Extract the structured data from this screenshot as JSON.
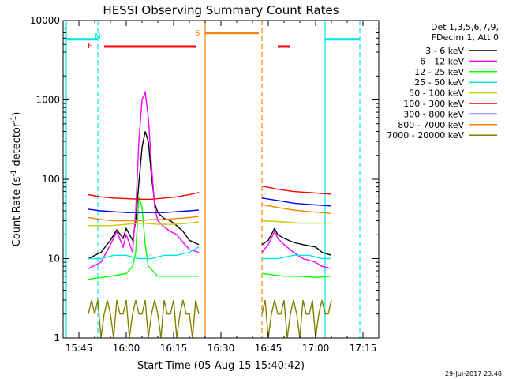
{
  "chart_data": {
    "type": "line",
    "title": "HESSI Observing Summary Count Rates",
    "xlabel": "Start Time (05-Aug-15 15:40:42)",
    "ylabel": "Count Rate (s",
    "ylabel_sup1": "-1",
    "ylabel_mid": " detector",
    "ylabel_sup2": "-1",
    "ylabel_end": ")",
    "footer": "29-Jul-2017 23:48",
    "y_scale": "log",
    "xlim": [
      "15:40",
      "17:20"
    ],
    "ylim": [
      1,
      10000
    ],
    "x_ticks": [
      "15:45",
      "16:00",
      "16:15",
      "16:30",
      "16:45",
      "17:00",
      "17:15"
    ],
    "y_ticks": [
      "1",
      "10",
      "100",
      "1000",
      "10000"
    ],
    "legend": {
      "placement": "right",
      "header": [
        "Det 1,3,5,6,7,9,",
        "FDecim 1, Att 0"
      ]
    },
    "flags": [
      {
        "letter": "N",
        "color": "#00e5e5",
        "time": "15:50"
      },
      {
        "letter": "F",
        "color": "#ff0000",
        "time": "15:50"
      },
      {
        "letter": "S",
        "color": "#ff8000",
        "time": "16:25"
      }
    ],
    "flag_bars": [
      {
        "color": "#00e5e5",
        "level": 5800,
        "start": "15:41",
        "end": "15:51"
      },
      {
        "color": "#ff0000",
        "level": 4700,
        "start": "15:53",
        "end": "16:22"
      },
      {
        "color": "#ff8000",
        "level": 7000,
        "start": "16:25",
        "end": "16:42"
      },
      {
        "color": "#ff0000",
        "level": 4700,
        "start": "16:48",
        "end": "16:52"
      },
      {
        "color": "#00e5e5",
        "level": 5800,
        "start": "17:03",
        "end": "17:14"
      }
    ],
    "vlines": [
      {
        "time": "15:41",
        "color": "#00e5e5",
        "style": "solid"
      },
      {
        "time": "15:51",
        "color": "#00e5e5",
        "style": "dashed"
      },
      {
        "time": "16:25",
        "color": "#ff8000",
        "style": "solid"
      },
      {
        "time": "16:43",
        "color": "#ff8000",
        "style": "dashed"
      },
      {
        "time": "17:03",
        "color": "#00e5e5",
        "style": "solid"
      },
      {
        "time": "17:14",
        "color": "#00e5e5",
        "style": "dashed"
      }
    ],
    "series": [
      {
        "name": "3 - 6 keV",
        "color": "#000000",
        "segments": [
          {
            "x": [
              "15:48",
              "15:52",
              "15:55",
              "15:57",
              "15:59",
              "16:00",
              "16:02",
              "16:03",
              "16:04",
              "16:05",
              "16:06",
              "16:07",
              "16:08",
              "16:09",
              "16:10",
              "16:12",
              "16:14",
              "16:16",
              "16:18",
              "16:20",
              "16:23"
            ],
            "y": [
              10,
              12,
              17,
              23,
              18,
              24,
              17,
              30,
              90,
              250,
              400,
              300,
              110,
              50,
              38,
              32,
              30,
              26,
              22,
              17,
              15
            ]
          },
          {
            "x": [
              "16:43",
              "16:45",
              "16:47",
              "16:48",
              "16:50",
              "16:53",
              "16:56",
              "17:00",
              "17:02",
              "17:05"
            ],
            "y": [
              15,
              17,
              24,
              20,
              18,
              16,
              15,
              14,
              12,
              11
            ]
          }
        ]
      },
      {
        "name": "6 - 12 keV",
        "color": "#ff00ff",
        "segments": [
          {
            "x": [
              "15:48",
              "15:52",
              "15:55",
              "15:57",
              "15:59",
              "16:00",
              "16:02",
              "16:03",
              "16:04",
              "16:05",
              "16:06",
              "16:07",
              "16:08",
              "16:09",
              "16:10",
              "16:12",
              "16:14",
              "16:16",
              "16:18",
              "16:20",
              "16:23"
            ],
            "y": [
              7.5,
              9,
              15,
              22,
              14,
              20,
              12,
              40,
              300,
              1000,
              1250,
              600,
              150,
              45,
              30,
              25,
              22,
              20,
              16,
              13,
              12
            ]
          },
          {
            "x": [
              "16:43",
              "16:45",
              "16:47",
              "16:48",
              "16:50",
              "16:53",
              "16:56",
              "17:00",
              "17:02",
              "17:05"
            ],
            "y": [
              12,
              15,
              22,
              18,
              15,
              12,
              10,
              9,
              8,
              7.5
            ]
          }
        ]
      },
      {
        "name": "12 - 25 keV",
        "color": "#00ff00",
        "segments": [
          {
            "x": [
              "15:48",
              "15:55",
              "16:00",
              "16:02",
              "16:03",
              "16:04",
              "16:05",
              "16:06",
              "16:07",
              "16:10",
              "16:15",
              "16:23"
            ],
            "y": [
              5.5,
              6,
              6.5,
              8,
              12,
              60,
              45,
              15,
              8,
              6,
              6,
              6
            ]
          },
          {
            "x": [
              "16:43",
              "16:50",
              "16:55",
              "17:00",
              "17:05"
            ],
            "y": [
              6.5,
              6,
              6,
              5.8,
              6
            ]
          }
        ]
      },
      {
        "name": "25 - 50 keV",
        "color": "#00e5e5",
        "segments": [
          {
            "x": [
              "15:48",
              "15:52",
              "15:56",
              "16:00",
              "16:04",
              "16:08",
              "16:12",
              "16:16",
              "16:20",
              "16:23"
            ],
            "y": [
              10,
              10,
              11,
              11,
              10,
              10,
              11,
              11,
              12,
              14
            ]
          },
          {
            "x": [
              "16:43",
              "16:48",
              "16:53",
              "16:58",
              "17:02",
              "17:05"
            ],
            "y": [
              10,
              10,
              11,
              11,
              10,
              10
            ]
          }
        ]
      },
      {
        "name": "50 - 100 keV",
        "color": "#cccc00",
        "segments": [
          {
            "x": [
              "15:48",
              "15:55",
              "16:00",
              "16:05",
              "16:10",
              "16:15",
              "16:20",
              "16:23"
            ],
            "y": [
              26,
              26,
              27,
              28,
              27,
              27,
              28,
              29
            ]
          },
          {
            "x": [
              "16:43",
              "16:50",
              "16:55",
              "17:00",
              "17:05"
            ],
            "y": [
              30,
              29,
              28,
              28,
              28
            ]
          }
        ]
      },
      {
        "name": "100 - 300 keV",
        "color": "#ff0000",
        "segments": [
          {
            "x": [
              "15:48",
              "15:52",
              "15:56",
              "16:00",
              "16:04",
              "16:08",
              "16:12",
              "16:16",
              "16:20",
              "16:23"
            ],
            "y": [
              64,
              60,
              58,
              57,
              56,
              56,
              58,
              60,
              64,
              68
            ]
          },
          {
            "x": [
              "16:43",
              "16:48",
              "16:53",
              "16:58",
              "17:02",
              "17:05"
            ],
            "y": [
              82,
              75,
              70,
              68,
              66,
              65
            ]
          }
        ]
      },
      {
        "name": "300 - 800 keV",
        "color": "#0000ff",
        "segments": [
          {
            "x": [
              "15:48",
              "15:52",
              "15:56",
              "16:00",
              "16:04",
              "16:08",
              "16:12",
              "16:16",
              "16:20",
              "16:23"
            ],
            "y": [
              42,
              40,
              39,
              38,
              38,
              38,
              38,
              39,
              40,
              41
            ]
          },
          {
            "x": [
              "16:43",
              "16:48",
              "16:53",
              "16:58",
              "17:02",
              "17:05"
            ],
            "y": [
              58,
              54,
              50,
              48,
              47,
              46
            ]
          }
        ]
      },
      {
        "name": "800 - 7000 keV",
        "color": "#ff8000",
        "segments": [
          {
            "x": [
              "15:48",
              "15:52",
              "15:56",
              "16:00",
              "16:04",
              "16:08",
              "16:12",
              "16:16",
              "16:20",
              "16:23"
            ],
            "y": [
              33,
              31,
              30,
              30,
              30,
              31,
              31,
              32,
              33,
              34
            ]
          },
          {
            "x": [
              "16:43",
              "16:48",
              "16:53",
              "16:58",
              "17:02",
              "17:05"
            ],
            "y": [
              48,
              44,
              41,
              39,
              38,
              37
            ]
          }
        ]
      },
      {
        "name": "7000 - 20000 keV",
        "color": "#808000",
        "segments": [
          {
            "x": [
              "15:48",
              "15:49",
              "15:50",
              "15:51",
              "15:52",
              "15:53",
              "15:54",
              "15:55",
              "15:56",
              "15:57",
              "15:58",
              "15:59",
              "16:00",
              "16:01",
              "16:02",
              "16:03",
              "16:04",
              "16:05",
              "16:06",
              "16:07",
              "16:08",
              "16:09",
              "16:10",
              "16:11",
              "16:12",
              "16:13",
              "16:14",
              "16:15",
              "16:16",
              "16:17",
              "16:18",
              "16:19",
              "16:20",
              "16:21",
              "16:22",
              "16:23"
            ],
            "y": [
              2,
              3,
              2,
              3,
              1,
              2,
              3,
              2,
              1,
              3,
              2,
              2,
              3,
              1,
              2,
              3,
              2,
              2,
              3,
              1,
              2,
              3,
              2,
              1,
              3,
              2,
              2,
              3,
              1,
              2,
              3,
              2,
              2,
              1,
              3,
              2
            ]
          },
          {
            "x": [
              "16:43",
              "16:44",
              "16:45",
              "16:46",
              "16:47",
              "16:48",
              "16:49",
              "16:50",
              "16:51",
              "16:52",
              "16:53",
              "16:54",
              "16:55",
              "16:56",
              "16:57",
              "16:58",
              "16:59",
              "17:00",
              "17:01",
              "17:02",
              "17:03",
              "17:04",
              "17:05"
            ],
            "y": [
              2,
              3,
              1,
              2,
              3,
              2,
              2,
              3,
              1,
              2,
              3,
              2,
              1,
              3,
              2,
              2,
              3,
              1,
              2,
              3,
              2,
              2,
              3
            ]
          }
        ]
      }
    ]
  }
}
